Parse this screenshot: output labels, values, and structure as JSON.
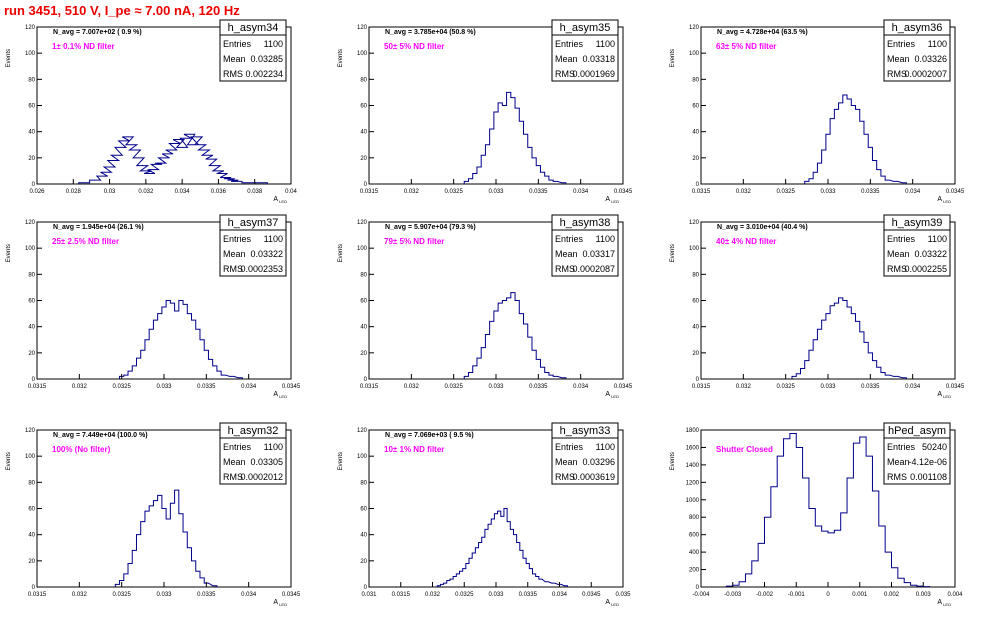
{
  "page_title": "run 3451,   510 V, I_pe ≈ 7.00 nA, 120 Hz",
  "colors": {
    "title": "#ee0000",
    "histogram": "#00008b",
    "annotation": "#ff00ff",
    "axes": "#000000"
  },
  "chart_data": [
    {
      "type": "histogram",
      "title": "h_asym34",
      "ylabel": "Events",
      "xlabel": "A_LED",
      "x_range": [
        0.026,
        0.04
      ],
      "y_range": [
        0,
        120
      ],
      "x_ticks": [
        "0.026",
        "0.028",
        "0.03",
        "0.032",
        "0.034",
        "0.036",
        "0.038",
        "0.04"
      ],
      "y_ticks": [
        "0",
        "20",
        "40",
        "60",
        "80",
        "100",
        "120"
      ],
      "stats": [
        {
          "label": "Entries",
          "value": "1100"
        },
        {
          "label": "Mean",
          "value": "0.03285"
        },
        {
          "label": "RMS",
          "value": "0.002234"
        }
      ],
      "navg": "N_avg = 7.007e+02 ( 0.9 %)",
      "filter_label": "1± 0.1% ND filter",
      "bins": {
        "x": [
          0.0286,
          0.0292,
          0.0296,
          0.0298,
          0.03,
          0.0302,
          0.0304,
          0.0306,
          0.0308,
          0.031,
          0.0312,
          0.0314,
          0.0316,
          0.0318,
          0.032,
          0.0322,
          0.0324,
          0.0326,
          0.0328,
          0.033,
          0.0332,
          0.0334,
          0.0336,
          0.0338,
          0.034,
          0.0342,
          0.0344,
          0.0346,
          0.0348,
          0.035,
          0.0352,
          0.0354,
          0.0356,
          0.0358,
          0.036,
          0.0362,
          0.0364,
          0.0366,
          0.0368,
          0.037,
          0.0376,
          0.0384
        ],
        "y": [
          1,
          3,
          6,
          9,
          13,
          18,
          22,
          28,
          33,
          36,
          30,
          26,
          20,
          14,
          10,
          8,
          11,
          15,
          16,
          20,
          23,
          26,
          31,
          34,
          28,
          35,
          38,
          30,
          36,
          30,
          26,
          22,
          19,
          14,
          10,
          8,
          5,
          4,
          3,
          2,
          1,
          1
        ]
      }
    },
    {
      "type": "histogram",
      "title": "h_asym35",
      "ylabel": "Events",
      "xlabel": "A_LED",
      "x_range": [
        0.0315,
        0.0345
      ],
      "y_range": [
        0,
        120
      ],
      "x_ticks": [
        "0.0315",
        "0.032",
        "0.0325",
        "0.033",
        "0.0335",
        "0.034",
        "0.0345"
      ],
      "y_ticks": [
        "0",
        "20",
        "40",
        "60",
        "80",
        "100",
        "120"
      ],
      "stats": [
        {
          "label": "Entries",
          "value": "1100"
        },
        {
          "label": "Mean",
          "value": "0.03318"
        },
        {
          "label": "RMS",
          "value": "0.0001969"
        }
      ],
      "navg": "N_avg = 3.785e+04 (50.8 %)",
      "filter_label": "50± 5% ND filter",
      "bins": {
        "x": [
          0.03265,
          0.0327,
          0.03275,
          0.0328,
          0.03285,
          0.0329,
          0.03295,
          0.033,
          0.03305,
          0.0331,
          0.03315,
          0.0332,
          0.03325,
          0.0333,
          0.03335,
          0.0334,
          0.03345,
          0.0335,
          0.03355,
          0.0336,
          0.03365,
          0.0337,
          0.0338
        ],
        "y": [
          2,
          4,
          8,
          13,
          22,
          30,
          42,
          55,
          62,
          60,
          70,
          66,
          58,
          48,
          38,
          28,
          20,
          14,
          9,
          6,
          3,
          2,
          1
        ]
      }
    },
    {
      "type": "histogram",
      "title": "h_asym36",
      "ylabel": "Events",
      "xlabel": "A_LED",
      "x_range": [
        0.0315,
        0.0345
      ],
      "y_range": [
        0,
        120
      ],
      "x_ticks": [
        "0.0315",
        "0.032",
        "0.0325",
        "0.033",
        "0.0335",
        "0.034",
        "0.0345"
      ],
      "y_ticks": [
        "0",
        "20",
        "40",
        "60",
        "80",
        "100",
        "120"
      ],
      "stats": [
        {
          "label": "Entries",
          "value": "1100"
        },
        {
          "label": "Mean",
          "value": "0.03326"
        },
        {
          "label": "RMS",
          "value": "0.0002007"
        }
      ],
      "navg": "N_avg = 4.728e+04 (63.5 %)",
      "filter_label": "63± 5% ND filter",
      "bins": {
        "x": [
          0.03275,
          0.0328,
          0.03285,
          0.0329,
          0.03295,
          0.033,
          0.03305,
          0.0331,
          0.03315,
          0.0332,
          0.03325,
          0.0333,
          0.03335,
          0.0334,
          0.03345,
          0.0335,
          0.03355,
          0.0336,
          0.03365,
          0.0337,
          0.0338,
          0.0339
        ],
        "y": [
          2,
          4,
          9,
          16,
          26,
          38,
          50,
          57,
          62,
          68,
          65,
          60,
          57,
          48,
          38,
          28,
          18,
          11,
          6,
          3,
          2,
          1
        ]
      }
    },
    {
      "type": "histogram",
      "title": "h_asym37",
      "ylabel": "Events",
      "xlabel": "A_LED",
      "x_range": [
        0.0315,
        0.0345
      ],
      "y_range": [
        0,
        120
      ],
      "x_ticks": [
        "0.0315",
        "0.032",
        "0.0325",
        "0.033",
        "0.0335",
        "0.034",
        "0.0345"
      ],
      "y_ticks": [
        "0",
        "20",
        "40",
        "60",
        "80",
        "100",
        "120"
      ],
      "stats": [
        {
          "label": "Entries",
          "value": "1100"
        },
        {
          "label": "Mean",
          "value": "0.03322"
        },
        {
          "label": "RMS",
          "value": "0.0002353"
        }
      ],
      "navg": "N_avg = 1.945e+04 (26.1 %)",
      "filter_label": "25± 2.5% ND filter",
      "bins": {
        "x": [
          0.0325,
          0.03255,
          0.0326,
          0.03265,
          0.0327,
          0.03275,
          0.0328,
          0.03285,
          0.0329,
          0.03295,
          0.033,
          0.03305,
          0.0331,
          0.03315,
          0.0332,
          0.03325,
          0.0333,
          0.03335,
          0.0334,
          0.03345,
          0.0335,
          0.03355,
          0.0336,
          0.03365,
          0.0337,
          0.0338,
          0.0339
        ],
        "y": [
          2,
          3,
          6,
          10,
          16,
          22,
          30,
          38,
          45,
          50,
          55,
          60,
          58,
          52,
          60,
          57,
          50,
          45,
          38,
          30,
          22,
          15,
          10,
          6,
          3,
          2,
          1
        ]
      }
    },
    {
      "type": "histogram",
      "title": "h_asym38",
      "ylabel": "Events",
      "xlabel": "A_LED",
      "x_range": [
        0.0315,
        0.0345
      ],
      "y_range": [
        0,
        120
      ],
      "x_ticks": [
        "0.0315",
        "0.032",
        "0.0325",
        "0.033",
        "0.0335",
        "0.034",
        "0.0345"
      ],
      "y_ticks": [
        "0",
        "20",
        "40",
        "60",
        "80",
        "100",
        "120"
      ],
      "stats": [
        {
          "label": "Entries",
          "value": "1100"
        },
        {
          "label": "Mean",
          "value": "0.03317"
        },
        {
          "label": "RMS",
          "value": "0.0002087"
        }
      ],
      "navg": "N_avg = 5.907e+04 (79.3 %)",
      "filter_label": "79± 5% ND filter",
      "bins": {
        "x": [
          0.03265,
          0.0327,
          0.03275,
          0.0328,
          0.03285,
          0.0329,
          0.03295,
          0.033,
          0.03305,
          0.0331,
          0.03315,
          0.0332,
          0.03325,
          0.0333,
          0.03335,
          0.0334,
          0.03345,
          0.0335,
          0.03355,
          0.0336,
          0.03365,
          0.0337,
          0.0338
        ],
        "y": [
          2,
          5,
          10,
          16,
          24,
          34,
          44,
          52,
          58,
          60,
          62,
          66,
          60,
          50,
          42,
          32,
          22,
          15,
          9,
          5,
          3,
          2,
          1
        ]
      }
    },
    {
      "type": "histogram",
      "title": "h_asym39",
      "ylabel": "Events",
      "xlabel": "A_LED",
      "x_range": [
        0.0315,
        0.0345
      ],
      "y_range": [
        0,
        120
      ],
      "x_ticks": [
        "0.0315",
        "0.032",
        "0.0325",
        "0.033",
        "0.0335",
        "0.034",
        "0.0345"
      ],
      "y_ticks": [
        "0",
        "20",
        "40",
        "60",
        "80",
        "100",
        "120"
      ],
      "stats": [
        {
          "label": "Entries",
          "value": "1100"
        },
        {
          "label": "Mean",
          "value": "0.03322"
        },
        {
          "label": "RMS",
          "value": "0.0002255"
        }
      ],
      "navg": "N_avg = 3.010e+04 (40.4 %)",
      "filter_label": "40± 4% ND filter",
      "bins": {
        "x": [
          0.0326,
          0.03265,
          0.0327,
          0.03275,
          0.0328,
          0.03285,
          0.0329,
          0.03295,
          0.033,
          0.03305,
          0.0331,
          0.03315,
          0.0332,
          0.03325,
          0.0333,
          0.03335,
          0.0334,
          0.03345,
          0.0335,
          0.03355,
          0.0336,
          0.03365,
          0.0337,
          0.0338,
          0.0339
        ],
        "y": [
          2,
          4,
          8,
          14,
          22,
          30,
          38,
          45,
          50,
          56,
          58,
          62,
          60,
          55,
          50,
          44,
          36,
          28,
          20,
          14,
          9,
          5,
          3,
          2,
          1
        ]
      }
    },
    {
      "type": "histogram",
      "title": "h_asym32",
      "ylabel": "Events",
      "xlabel": "A_LED",
      "x_range": [
        0.0315,
        0.0345
      ],
      "y_range": [
        0,
        120
      ],
      "x_ticks": [
        "0.0315",
        "0.032",
        "0.0325",
        "0.033",
        "0.0335",
        "0.034",
        "0.0345"
      ],
      "y_ticks": [
        "0",
        "20",
        "40",
        "60",
        "80",
        "100",
        "120"
      ],
      "stats": [
        {
          "label": "Entries",
          "value": "1100"
        },
        {
          "label": "Mean",
          "value": "0.03305"
        },
        {
          "label": "RMS",
          "value": "0.0002012"
        }
      ],
      "navg": "N_avg = 7.449e+04 (100.0 %)",
      "filter_label": "100% (No filter)",
      "bins": {
        "x": [
          0.03245,
          0.0325,
          0.03255,
          0.0326,
          0.03265,
          0.0327,
          0.03275,
          0.0328,
          0.03285,
          0.0329,
          0.03295,
          0.033,
          0.03305,
          0.0331,
          0.03315,
          0.0332,
          0.03325,
          0.0333,
          0.03335,
          0.0334,
          0.03345,
          0.0335,
          0.0336
        ],
        "y": [
          2,
          5,
          10,
          18,
          28,
          40,
          50,
          58,
          62,
          66,
          70,
          60,
          52,
          64,
          74,
          56,
          42,
          30,
          20,
          12,
          7,
          3,
          1
        ]
      }
    },
    {
      "type": "histogram",
      "title": "h_asym33",
      "ylabel": "Events",
      "xlabel": "A_LED",
      "x_range": [
        0.031,
        0.035
      ],
      "y_range": [
        0,
        120
      ],
      "x_ticks": [
        "0.031",
        "0.0315",
        "0.032",
        "0.0325",
        "0.033",
        "0.0335",
        "0.034",
        "0.0345",
        "0.035"
      ],
      "y_ticks": [
        "0",
        "20",
        "40",
        "60",
        "80",
        "100",
        "120"
      ],
      "stats": [
        {
          "label": "Entries",
          "value": "1100"
        },
        {
          "label": "Mean",
          "value": "0.03296"
        },
        {
          "label": "RMS",
          "value": "0.0003619"
        }
      ],
      "navg": "N_avg = 7.069e+03 ( 9.5 %)",
      "filter_label": "10± 1% ND filter",
      "bins": {
        "x": [
          0.0321,
          0.03215,
          0.0322,
          0.03225,
          0.0323,
          0.03235,
          0.0324,
          0.03245,
          0.0325,
          0.03255,
          0.0326,
          0.03265,
          0.0327,
          0.03275,
          0.0328,
          0.03285,
          0.0329,
          0.03295,
          0.033,
          0.03305,
          0.0331,
          0.03315,
          0.0332,
          0.03325,
          0.0333,
          0.03335,
          0.0334,
          0.03345,
          0.0335,
          0.03355,
          0.0336,
          0.03365,
          0.0337,
          0.0338,
          0.0339,
          0.034,
          0.0341
        ],
        "y": [
          1,
          2,
          3,
          5,
          6,
          8,
          10,
          12,
          14,
          18,
          22,
          26,
          30,
          34,
          38,
          44,
          48,
          52,
          56,
          58,
          54,
          60,
          50,
          44,
          40,
          34,
          28,
          22,
          18,
          14,
          10,
          8,
          6,
          4,
          3,
          2,
          1
        ]
      }
    },
    {
      "type": "histogram",
      "title": "hPed_asym",
      "ylabel": "Events",
      "xlabel": "A_LED",
      "x_range": [
        -0.004,
        0.004
      ],
      "y_range": [
        0,
        1800
      ],
      "x_ticks": [
        "-0.004",
        "-0.003",
        "-0.002",
        "-0.001",
        "0",
        "0.001",
        "0.002",
        "0.003",
        "0.004"
      ],
      "y_ticks": [
        "0",
        "200",
        "400",
        "600",
        "800",
        "1000",
        "1200",
        "1400",
        "1600",
        "1800"
      ],
      "stats": [
        {
          "label": "Entries",
          "value": "50240"
        },
        {
          "label": "Mean",
          "value": "-4.12e-06"
        },
        {
          "label": "RMS",
          "value": "0.001108"
        }
      ],
      "navg": "",
      "filter_label": "Shutter Closed",
      "bins": {
        "x": [
          -0.0031,
          -0.0029,
          -0.0027,
          -0.0025,
          -0.0023,
          -0.0021,
          -0.0019,
          -0.0017,
          -0.0015,
          -0.0013,
          -0.0011,
          -0.0009,
          -0.0007,
          -0.0005,
          -0.0003,
          -0.0001,
          0.0001,
          0.0003,
          0.0005,
          0.0007,
          0.0009,
          0.0011,
          0.0013,
          0.0015,
          0.0017,
          0.0019,
          0.0021,
          0.0023,
          0.0025,
          0.0027,
          0.0029,
          0.0031
        ],
        "y": [
          10,
          20,
          60,
          150,
          300,
          500,
          800,
          1150,
          1500,
          1700,
          1760,
          1600,
          1250,
          900,
          700,
          640,
          620,
          650,
          850,
          1250,
          1650,
          1720,
          1500,
          1100,
          700,
          400,
          220,
          100,
          50,
          20,
          10,
          5
        ]
      }
    }
  ]
}
